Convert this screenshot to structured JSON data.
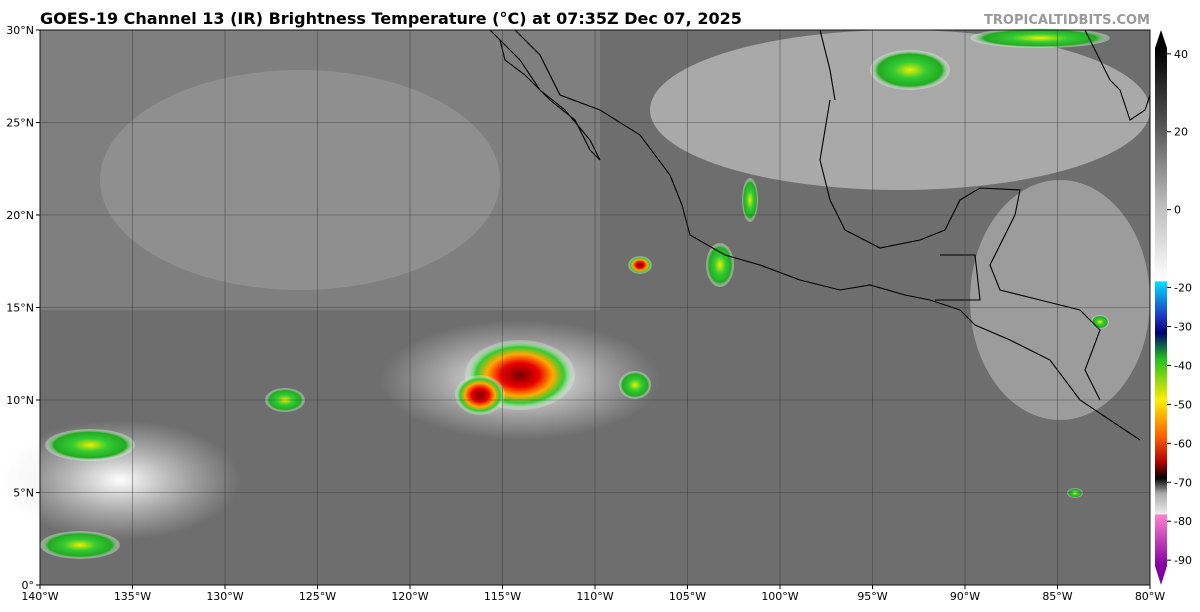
{
  "title": "GOES-19 Channel 13 (IR) Brightness Temperature (°C) at 07:35Z Dec 07, 2025",
  "watermark": "TROPICALTIDBITS.COM",
  "map": {
    "xlim": [
      -140,
      -80
    ],
    "ylim": [
      0,
      30
    ],
    "xticks": [
      {
        "value": -140,
        "label": "140°W"
      },
      {
        "value": -135,
        "label": "135°W"
      },
      {
        "value": -130,
        "label": "130°W"
      },
      {
        "value": -125,
        "label": "125°W"
      },
      {
        "value": -120,
        "label": "120°W"
      },
      {
        "value": -115,
        "label": "115°W"
      },
      {
        "value": -110,
        "label": "110°W"
      },
      {
        "value": -105,
        "label": "105°W"
      },
      {
        "value": -100,
        "label": "100°W"
      },
      {
        "value": -95,
        "label": "95°W"
      },
      {
        "value": -90,
        "label": "90°W"
      },
      {
        "value": -85,
        "label": "85°W"
      },
      {
        "value": -80,
        "label": "80°W"
      }
    ],
    "yticks": [
      {
        "value": 0,
        "label": "0°"
      },
      {
        "value": 5,
        "label": "5°N"
      },
      {
        "value": 10,
        "label": "10°N"
      },
      {
        "value": 15,
        "label": "15°N"
      },
      {
        "value": 20,
        "label": "20°N"
      },
      {
        "value": 25,
        "label": "25°N"
      },
      {
        "value": 30,
        "label": "30°N"
      }
    ],
    "grid": true
  },
  "colorbar": {
    "lim": [
      -91.5,
      41.5
    ],
    "ticks": [
      40,
      20,
      0,
      -20,
      -30,
      -40,
      -50,
      -60,
      -70,
      -80,
      -90
    ]
  }
}
